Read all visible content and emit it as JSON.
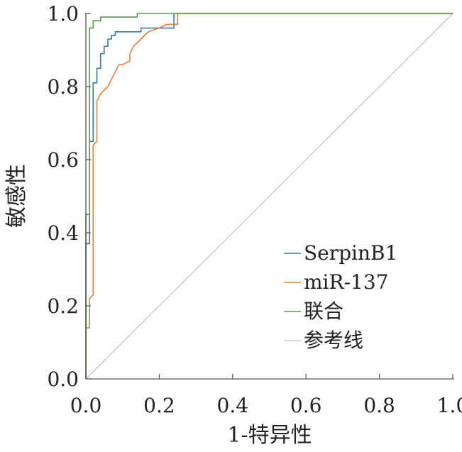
{
  "chart_data": {
    "type": "line",
    "title": "",
    "xlabel": "1-特异性",
    "ylabel": "敏感性",
    "xlim": [
      0,
      1
    ],
    "ylim": [
      0,
      1
    ],
    "xticks": [
      "0.0",
      "0.2",
      "0.4",
      "0.6",
      "0.8",
      "1.0"
    ],
    "yticks": [
      "0.0",
      "0.2",
      "0.4",
      "0.6",
      "0.8",
      "1.0"
    ],
    "legend_position": "bottom-right",
    "series": [
      {
        "name": "SerpinB1",
        "color": "#3a78a3",
        "x": [
          0,
          0,
          0.01,
          0.01,
          0.02,
          0.02,
          0.03,
          0.03,
          0.04,
          0.04,
          0.05,
          0.05,
          0.06,
          0.06,
          0.07,
          0.07,
          0.08,
          0.08,
          0.1,
          0.1,
          0.15,
          0.15,
          0.24,
          0.24,
          1
        ],
        "y": [
          0,
          0.37,
          0.37,
          0.65,
          0.65,
          0.81,
          0.81,
          0.85,
          0.85,
          0.89,
          0.89,
          0.91,
          0.91,
          0.93,
          0.93,
          0.94,
          0.94,
          0.95,
          0.95,
          0.95,
          0.95,
          0.96,
          0.96,
          1.0,
          1.0
        ]
      },
      {
        "name": "miR-137",
        "color": "#e37f3b",
        "x": [
          0,
          0,
          0.01,
          0.01,
          0.02,
          0.02,
          0.03,
          0.03,
          0.04,
          0.05,
          0.06,
          0.07,
          0.08,
          0.09,
          0.1,
          0.12,
          0.12,
          0.13,
          0.15,
          0.17,
          0.2,
          0.22,
          0.25,
          0.25,
          1
        ],
        "y": [
          0,
          0.14,
          0.14,
          0.22,
          0.23,
          0.64,
          0.65,
          0.76,
          0.78,
          0.79,
          0.8,
          0.82,
          0.84,
          0.86,
          0.86,
          0.87,
          0.89,
          0.91,
          0.93,
          0.95,
          0.96,
          0.97,
          0.97,
          1.0,
          1.0
        ]
      },
      {
        "name": "联合",
        "color": "#5a9a4d",
        "x": [
          0,
          0,
          0.01,
          0.01,
          0.02,
          0.02,
          0.04,
          0.04,
          0.14,
          0.14,
          1
        ],
        "y": [
          0,
          0.45,
          0.45,
          0.96,
          0.96,
          0.98,
          0.98,
          0.99,
          0.99,
          1.0,
          1.0
        ]
      },
      {
        "name": "参考线",
        "color": "#b8b8b8",
        "x": [
          0,
          1
        ],
        "y": [
          0,
          1
        ]
      }
    ]
  }
}
